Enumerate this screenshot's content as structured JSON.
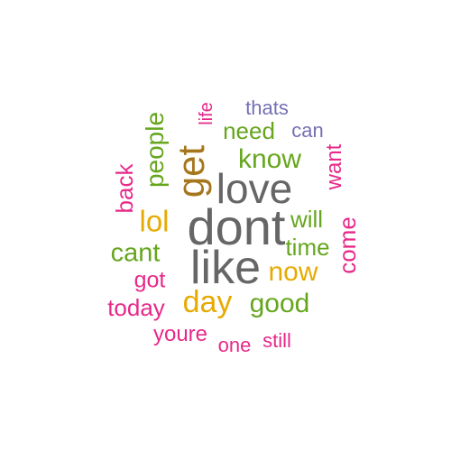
{
  "word_cloud": {
    "words": [
      {
        "text": "dont",
        "weight": 10,
        "color": "#666666"
      },
      {
        "text": "like",
        "weight": 9,
        "color": "#666666"
      },
      {
        "text": "love",
        "weight": 8,
        "color": "#666666"
      },
      {
        "text": "get",
        "weight": 7,
        "color": "#a6761d"
      },
      {
        "text": "day",
        "weight": 6,
        "color": "#e6ab02"
      },
      {
        "text": "lol",
        "weight": 6,
        "color": "#e6ab02"
      },
      {
        "text": "now",
        "weight": 5,
        "color": "#e6ab02"
      },
      {
        "text": "good",
        "weight": 5,
        "color": "#66a61e"
      },
      {
        "text": "know",
        "weight": 5,
        "color": "#66a61e"
      },
      {
        "text": "cant",
        "weight": 5,
        "color": "#66a61e"
      },
      {
        "text": "people",
        "weight": 5,
        "color": "#66a61e"
      },
      {
        "text": "need",
        "weight": 4,
        "color": "#66a61e"
      },
      {
        "text": "will",
        "weight": 4,
        "color": "#66a61e"
      },
      {
        "text": "time",
        "weight": 4,
        "color": "#66a61e"
      },
      {
        "text": "got",
        "weight": 4,
        "color": "#e7298a"
      },
      {
        "text": "today",
        "weight": 4,
        "color": "#e7298a"
      },
      {
        "text": "back",
        "weight": 4,
        "color": "#e7298a"
      },
      {
        "text": "come",
        "weight": 4,
        "color": "#e7298a"
      },
      {
        "text": "want",
        "weight": 3,
        "color": "#e7298a"
      },
      {
        "text": "youre",
        "weight": 3,
        "color": "#e7298a"
      },
      {
        "text": "one",
        "weight": 2,
        "color": "#e7298a"
      },
      {
        "text": "still",
        "weight": 2,
        "color": "#e7298a"
      },
      {
        "text": "life",
        "weight": 2,
        "color": "#e7298a"
      },
      {
        "text": "thats",
        "weight": 2,
        "color": "#7570b3"
      },
      {
        "text": "can",
        "weight": 2,
        "color": "#7570b3"
      }
    ]
  }
}
